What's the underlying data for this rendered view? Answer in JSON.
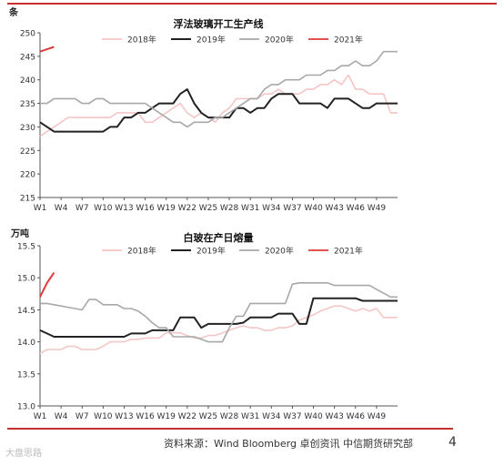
{
  "page": {
    "source": "资料来源：Wind Bloomberg 卓创资讯 中信期货研究部",
    "page_number": "4",
    "watermark": "大盘思路"
  },
  "colors": {
    "accent": "#c8302c",
    "s2018": "#f4c6c6",
    "s2019": "#222222",
    "s2020": "#a8a8a8",
    "s2021": "#e03a3a"
  },
  "chart_data": [
    {
      "type": "line",
      "title": "浮法玻璃开工生产线",
      "ylabel": "条",
      "ylim": [
        215,
        250
      ],
      "yticks": [
        215,
        220,
        225,
        230,
        235,
        240,
        245,
        250
      ],
      "x_range": [
        1,
        52
      ],
      "xticks": [
        "W1",
        "W4",
        "W7",
        "W10",
        "W13",
        "W16",
        "W19",
        "W22",
        "W25",
        "W28",
        "W31",
        "W34",
        "W37",
        "W40",
        "W43",
        "W46",
        "W49"
      ],
      "legend_position": "top",
      "series": [
        {
          "name": "2018年",
          "color": "#f4c6c6",
          "values": [
            228,
            229,
            230,
            231,
            232,
            232,
            232,
            232,
            232,
            232,
            232,
            233,
            233,
            233,
            233,
            231,
            231,
            232,
            233,
            234,
            235,
            233,
            232,
            233,
            232,
            231,
            233,
            234,
            236,
            236,
            236,
            236,
            237,
            237,
            238,
            237,
            237,
            237,
            238,
            238,
            239,
            239,
            240,
            239,
            241,
            238,
            238,
            237,
            237,
            237,
            233,
            233
          ]
        },
        {
          "name": "2019年",
          "color": "#222222",
          "values": [
            231,
            230,
            229,
            229,
            229,
            229,
            229,
            229,
            229,
            229,
            230,
            230,
            232,
            232,
            233,
            233,
            234,
            235,
            235,
            235,
            237,
            238,
            235,
            233,
            232,
            232,
            232,
            232,
            234,
            234,
            233,
            234,
            234,
            236,
            237,
            237,
            237,
            235,
            235,
            235,
            235,
            234,
            236,
            236,
            236,
            235,
            234,
            234,
            235,
            235,
            235,
            235
          ]
        },
        {
          "name": "2020年",
          "color": "#a8a8a8",
          "values": [
            235,
            235,
            236,
            236,
            236,
            236,
            235,
            235,
            236,
            236,
            235,
            235,
            235,
            235,
            235,
            235,
            234,
            233,
            232,
            231,
            231,
            230,
            231,
            231,
            231,
            232,
            232,
            233,
            234,
            235,
            236,
            236,
            238,
            239,
            239,
            240,
            240,
            240,
            241,
            241,
            241,
            242,
            242,
            243,
            243,
            244,
            243,
            243,
            244,
            246,
            246,
            246
          ]
        },
        {
          "name": "2021年",
          "color": "#e03a3a",
          "values": [
            246,
            246.5,
            247
          ]
        }
      ]
    },
    {
      "type": "line",
      "title": "白玻在产日熔量",
      "ylabel": "万吨",
      "ylim": [
        13.0,
        15.5
      ],
      "yticks": [
        "13.0",
        "13.5",
        "14.0",
        "14.5",
        "15.0",
        "15.5"
      ],
      "x_range": [
        1,
        52
      ],
      "xticks": [
        "W1",
        "W4",
        "W7",
        "W10",
        "W13",
        "W16",
        "W19",
        "W22",
        "W25",
        "W28",
        "W31",
        "W34",
        "W37",
        "W40",
        "W43",
        "W46",
        "W49"
      ],
      "legend_position": "top",
      "series": [
        {
          "name": "2018年",
          "color": "#f4c6c6",
          "values": [
            13.82,
            13.88,
            13.88,
            13.88,
            13.93,
            13.93,
            13.88,
            13.88,
            13.88,
            13.93,
            14.0,
            14.0,
            14.0,
            14.04,
            14.04,
            14.06,
            14.06,
            14.06,
            14.14,
            14.14,
            14.14,
            14.1,
            14.06,
            14.06,
            14.1,
            14.1,
            14.14,
            14.18,
            14.22,
            14.25,
            14.22,
            14.22,
            14.18,
            14.18,
            14.22,
            14.22,
            14.25,
            14.34,
            14.38,
            14.42,
            14.48,
            14.52,
            14.56,
            14.56,
            14.52,
            14.48,
            14.52,
            14.48,
            14.52,
            14.38,
            14.38,
            14.38
          ]
        },
        {
          "name": "2019年",
          "color": "#222222",
          "values": [
            14.18,
            14.13,
            14.08,
            14.08,
            14.08,
            14.08,
            14.08,
            14.08,
            14.08,
            14.08,
            14.08,
            14.08,
            14.08,
            14.13,
            14.13,
            14.13,
            14.18,
            14.18,
            14.18,
            14.18,
            14.38,
            14.38,
            14.38,
            14.22,
            14.28,
            14.28,
            14.28,
            14.28,
            14.28,
            14.3,
            14.38,
            14.38,
            14.38,
            14.38,
            14.44,
            14.44,
            14.44,
            14.28,
            14.28,
            14.68,
            14.68,
            14.68,
            14.68,
            14.68,
            14.68,
            14.68,
            14.64,
            14.64,
            14.64,
            14.64,
            14.64,
            14.64
          ]
        },
        {
          "name": "2020年",
          "color": "#a8a8a8",
          "values": [
            14.6,
            14.6,
            14.58,
            14.56,
            14.54,
            14.52,
            14.5,
            14.66,
            14.66,
            14.58,
            14.58,
            14.58,
            14.52,
            14.52,
            14.48,
            14.4,
            14.3,
            14.22,
            14.22,
            14.08,
            14.08,
            14.08,
            14.08,
            14.04,
            14.0,
            14.0,
            14.0,
            14.22,
            14.4,
            14.4,
            14.6,
            14.6,
            14.6,
            14.6,
            14.6,
            14.6,
            14.9,
            14.92,
            14.92,
            14.92,
            14.92,
            14.92,
            14.88,
            14.88,
            14.88,
            14.88,
            14.88,
            14.88,
            14.82,
            14.76,
            14.7,
            14.7
          ]
        },
        {
          "name": "2021年",
          "color": "#e03a3a",
          "values": [
            14.7,
            14.92,
            15.08
          ]
        }
      ]
    }
  ]
}
